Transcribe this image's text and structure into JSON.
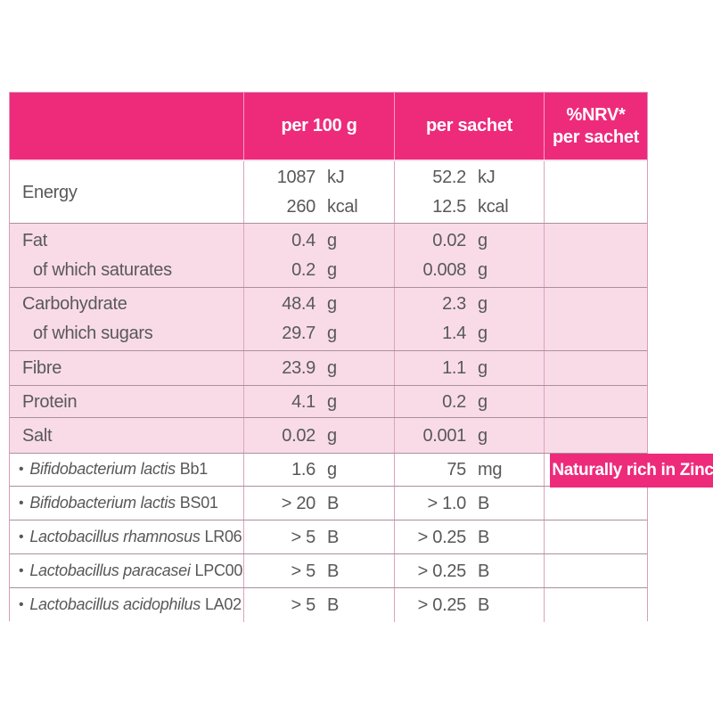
{
  "colors": {
    "header_pink": "#ee2a7b",
    "row_pink": "#f9dbe8",
    "badge_pink": "#ee2a7b",
    "text_grey": "#58585a",
    "border_pink": "#d99cba"
  },
  "table": {
    "header": {
      "per100": "per 100 g",
      "sachet": "per sachet",
      "nrv_line1": "%NRV*",
      "nrv_line2": "per sachet"
    },
    "rows": [
      {
        "label": "Energy",
        "per100": [
          {
            "v": "1087",
            "u": "kJ"
          },
          {
            "v": "260",
            "u": "kcal"
          }
        ],
        "sachet": [
          {
            "v": "52.2",
            "u": "kJ"
          },
          {
            "v": "12.5",
            "u": "kcal"
          }
        ]
      },
      {
        "label": "Fat",
        "sublabel": "of which saturates",
        "per100": [
          {
            "v": "0.4",
            "u": "g"
          },
          {
            "v": "0.2",
            "u": "g"
          }
        ],
        "sachet": [
          {
            "v": "0.02",
            "u": "g"
          },
          {
            "v": "0.008",
            "u": "g"
          }
        ]
      },
      {
        "label": "Carbohydrate",
        "sublabel": "of which sugars",
        "per100": [
          {
            "v": "48.4",
            "u": "g"
          },
          {
            "v": "29.7",
            "u": "g"
          }
        ],
        "sachet": [
          {
            "v": "2.3",
            "u": "g"
          },
          {
            "v": "1.4",
            "u": "g"
          }
        ]
      },
      {
        "label": "Fibre",
        "per100": [
          {
            "v": "23.9",
            "u": "g"
          }
        ],
        "sachet": [
          {
            "v": "1.1",
            "u": "g"
          }
        ]
      },
      {
        "label": "Protein",
        "per100": [
          {
            "v": "4.1",
            "u": "g"
          }
        ],
        "sachet": [
          {
            "v": "0.2",
            "u": "g"
          }
        ]
      },
      {
        "label": "Salt",
        "per100": [
          {
            "v": "0.02",
            "u": "g"
          }
        ],
        "sachet": [
          {
            "v": "0.001",
            "u": "g"
          }
        ]
      },
      {
        "bullet": "•",
        "name": "Bifidobacterium lactis",
        "strain": "Bb1",
        "per100": [
          {
            "v": "1.6",
            "u": "g"
          }
        ],
        "sachet": [
          {
            "v": "75",
            "u": "mg"
          }
        ],
        "badge": "Naturally rich in Zinc"
      },
      {
        "bullet": "•",
        "name": "Bifidobacterium lactis",
        "strain": "BS01",
        "per100": [
          {
            "v": "> 20",
            "u": "B"
          }
        ],
        "sachet": [
          {
            "v": "> 1.0",
            "u": "B"
          }
        ]
      },
      {
        "bullet": "•",
        "name": "Lactobacillus rhamnosus",
        "strain": "LR06",
        "per100": [
          {
            "v": "> 5",
            "u": "B"
          }
        ],
        "sachet": [
          {
            "v": "> 0.25",
            "u": "B"
          }
        ]
      },
      {
        "bullet": "•",
        "name": "Lactobacillus paracasei",
        "strain": "LPC00",
        "per100": [
          {
            "v": "> 5",
            "u": "B"
          }
        ],
        "sachet": [
          {
            "v": "> 0.25",
            "u": "B"
          }
        ]
      },
      {
        "bullet": "•",
        "name": "Lactobacillus acidophilus",
        "strain": "LA02",
        "per100": [
          {
            "v": "> 5",
            "u": "B"
          }
        ],
        "sachet": [
          {
            "v": "> 0.25",
            "u": "B"
          }
        ]
      }
    ]
  }
}
